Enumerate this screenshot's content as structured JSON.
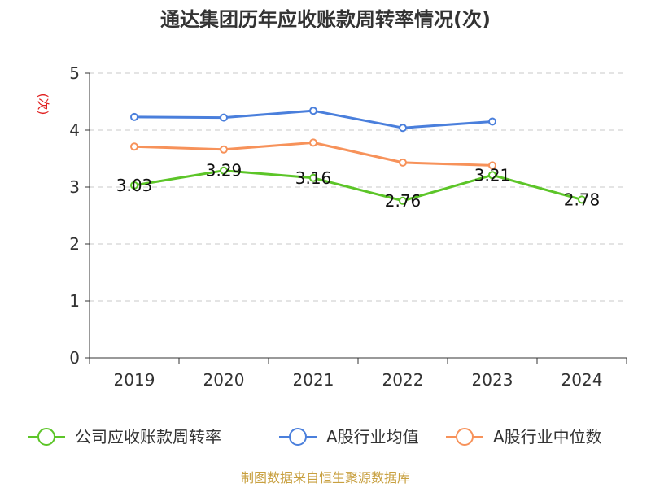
{
  "chart_data": {
    "type": "line",
    "title": "通达集团历年应收账款周转率情况(次)",
    "ylabel": "(次)",
    "xlabel": "",
    "categories": [
      "2019",
      "2020",
      "2021",
      "2022",
      "2023",
      "2024"
    ],
    "ylim": [
      0,
      5
    ],
    "yticks": [
      0,
      1,
      2,
      3,
      4,
      5
    ],
    "grid": true,
    "legend_position": "bottom",
    "series": [
      {
        "name": "公司应收账款周转率",
        "color": "#5cc528",
        "values": [
          3.03,
          3.29,
          3.16,
          2.76,
          3.21,
          2.78
        ],
        "labels": [
          "3.03",
          "3.29",
          "3.16",
          "2.76",
          "3.21",
          "2.78"
        ]
      },
      {
        "name": "A股行业均值",
        "color": "#4a7fdc",
        "values": [
          4.23,
          4.22,
          4.34,
          4.04,
          4.15,
          null
        ]
      },
      {
        "name": "A股行业中位数",
        "color": "#f7925a",
        "values": [
          3.71,
          3.66,
          3.78,
          3.43,
          3.38,
          null
        ]
      }
    ],
    "source": "制图数据来自恒生聚源数据库"
  }
}
